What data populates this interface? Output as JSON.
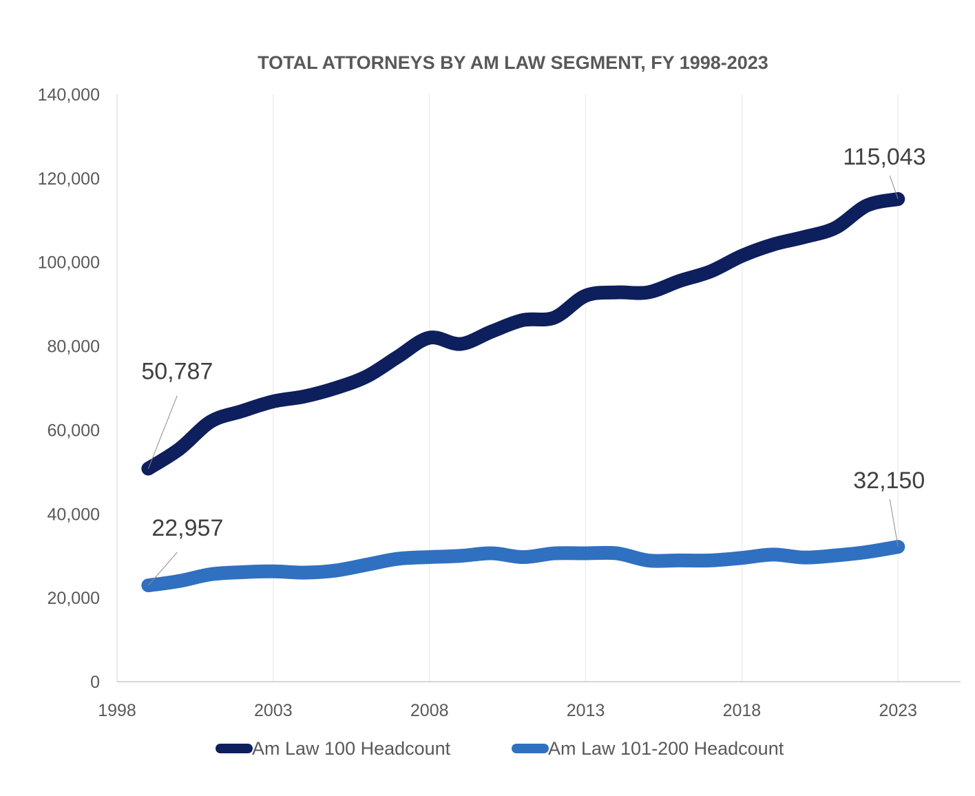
{
  "chart_data": {
    "type": "line",
    "title": "TOTAL ATTORNEYS BY AM LAW SEGMENT, FY 1998-2023",
    "xlabel": "",
    "ylabel": "",
    "xlim": [
      1998,
      2025
    ],
    "ylim": [
      0,
      140000
    ],
    "x_ticks": [
      "1998",
      "2003",
      "2008",
      "2013",
      "2018",
      "2023"
    ],
    "y_ticks": [
      "0",
      "20,000",
      "40,000",
      "60,000",
      "80,000",
      "100,000",
      "120,000",
      "140,000"
    ],
    "grid": "vertical",
    "legend": "bottom",
    "x": [
      1999,
      2000,
      2001,
      2002,
      2003,
      2004,
      2005,
      2006,
      2007,
      2008,
      2009,
      2010,
      2011,
      2012,
      2013,
      2014,
      2015,
      2016,
      2017,
      2018,
      2019,
      2020,
      2021,
      2022,
      2023
    ],
    "series": [
      {
        "name": "Am Law 100 Headcount",
        "color": "#0d1f5c",
        "values": [
          50787,
          55500,
          62000,
          64500,
          66800,
          68000,
          70000,
          72800,
          77500,
          82000,
          80500,
          83500,
          86200,
          86800,
          92000,
          92800,
          92800,
          95500,
          97800,
          101500,
          104200,
          106000,
          108200,
          113500,
          115043
        ],
        "labels": [
          {
            "index": 0,
            "text": "50,787"
          },
          {
            "index": 24,
            "text": "115,043"
          }
        ]
      },
      {
        "name": "Am Law 101-200 Headcount",
        "color": "#3070c0",
        "values": [
          22957,
          24000,
          25600,
          26100,
          26300,
          26000,
          26500,
          27900,
          29300,
          29700,
          30000,
          30600,
          29700,
          30600,
          30600,
          30600,
          28900,
          28900,
          28900,
          29500,
          30300,
          29600,
          30100,
          30900,
          32150
        ],
        "labels": [
          {
            "index": 0,
            "text": "22,957"
          },
          {
            "index": 24,
            "text": "32,150"
          }
        ]
      }
    ]
  }
}
